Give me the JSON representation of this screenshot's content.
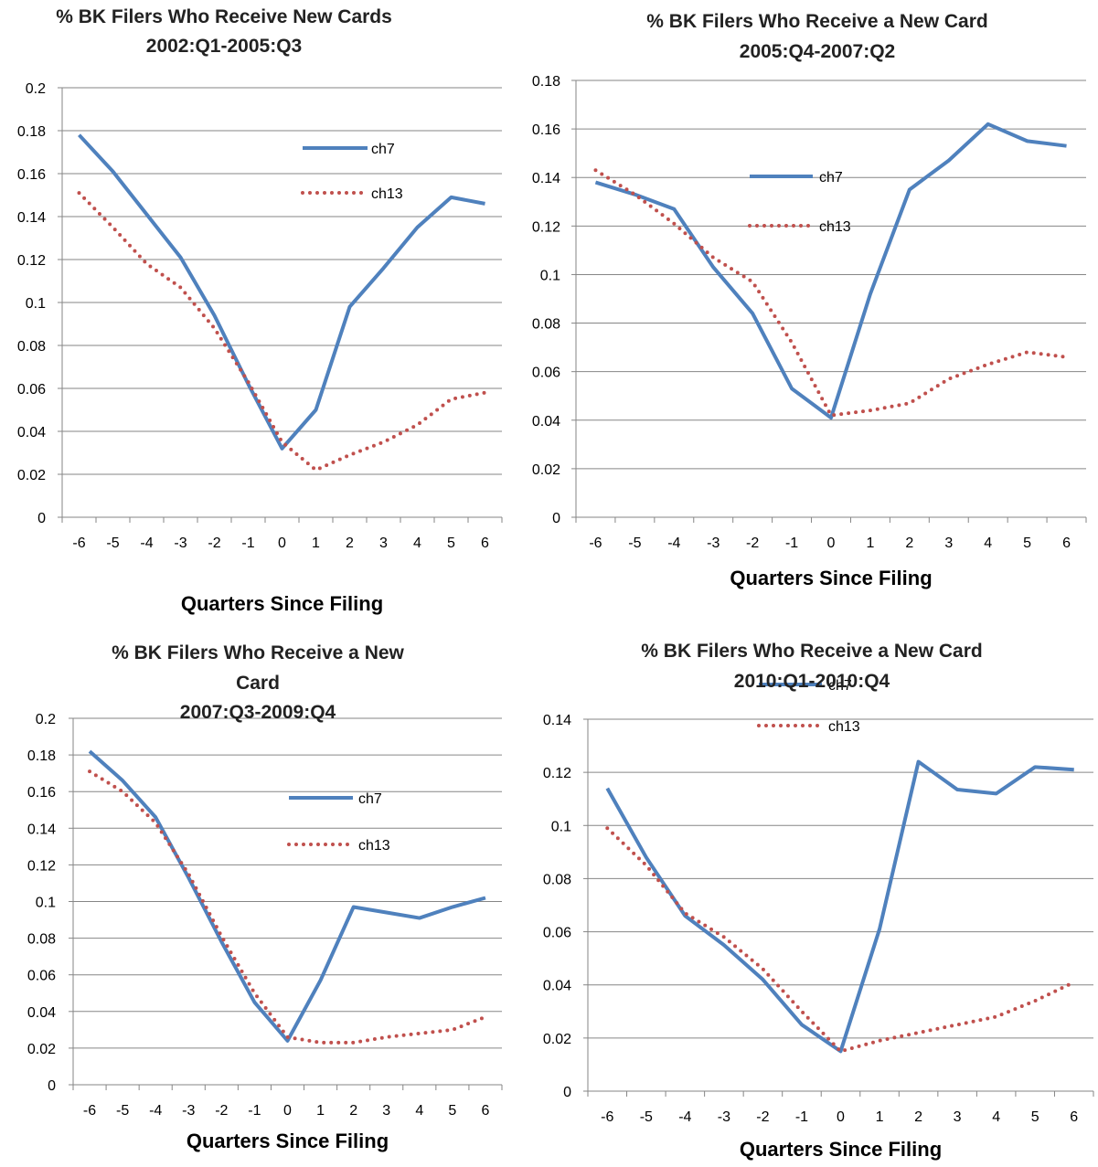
{
  "colors": {
    "ch7": "#4f81bd",
    "ch13": "#c0504d",
    "grid": "#868686",
    "axis": "#868686"
  },
  "chart_data": [
    {
      "type": "line",
      "title_lines": [
        "% BK Filers Who Receive New Cards",
        "2002:Q1-2005:Q3"
      ],
      "xlabel": "Quarters Since Filing",
      "ylabel": "",
      "categories": [
        "-6",
        "-5",
        "-4",
        "-3",
        "-2",
        "-1",
        "0",
        "1",
        "2",
        "3",
        "4",
        "5",
        "6"
      ],
      "ylim": [
        0,
        0.2
      ],
      "yticks": [
        "0",
        "0.02",
        "0.04",
        "0.06",
        "0.08",
        "0.1",
        "0.12",
        "0.14",
        "0.16",
        "0.18",
        "0.2"
      ],
      "legend_position": "upper-right",
      "series": [
        {
          "name": "ch7",
          "style": "solid",
          "values": [
            0.178,
            0.161,
            0.141,
            0.121,
            0.094,
            0.062,
            0.032,
            0.05,
            0.098,
            0.116,
            0.135,
            0.149,
            0.146
          ]
        },
        {
          "name": "ch13",
          "style": "dotted",
          "values": [
            0.151,
            0.135,
            0.118,
            0.107,
            0.088,
            0.063,
            0.035,
            0.022,
            0.029,
            0.035,
            0.043,
            0.055,
            0.058
          ]
        }
      ]
    },
    {
      "type": "line",
      "title_lines": [
        "% BK Filers Who Receive a New Card",
        "2005:Q4-2007:Q2"
      ],
      "xlabel": "Quarters Since Filing",
      "ylabel": "",
      "categories": [
        "-6",
        "-5",
        "-4",
        "-3",
        "-2",
        "-1",
        "0",
        "1",
        "2",
        "3",
        "4",
        "5",
        "6"
      ],
      "ylim": [
        0,
        0.18
      ],
      "yticks": [
        "0",
        "0.02",
        "0.04",
        "0.06",
        "0.08",
        "0.1",
        "0.12",
        "0.14",
        "0.16",
        "0.18"
      ],
      "legend_position": "center",
      "series": [
        {
          "name": "ch7",
          "style": "solid",
          "values": [
            0.138,
            0.133,
            0.127,
            0.103,
            0.084,
            0.053,
            0.041,
            0.092,
            0.135,
            0.147,
            0.162,
            0.155,
            0.153
          ]
        },
        {
          "name": "ch13",
          "style": "dotted",
          "values": [
            0.143,
            0.133,
            0.121,
            0.107,
            0.097,
            0.072,
            0.042,
            0.044,
            0.047,
            0.057,
            0.063,
            0.068,
            0.066
          ]
        }
      ]
    },
    {
      "type": "line",
      "title_lines": [
        "% BK Filers Who Receive a New",
        "Card",
        "2007:Q3-2009:Q4"
      ],
      "xlabel": "Quarters Since Filing",
      "ylabel": "",
      "categories": [
        "-6",
        "-5",
        "-4",
        "-3",
        "-2",
        "-1",
        "0",
        "1",
        "2",
        "3",
        "4",
        "5",
        "6"
      ],
      "ylim": [
        0,
        0.2
      ],
      "yticks": [
        "0",
        "0.02",
        "0.04",
        "0.06",
        "0.08",
        "0.1",
        "0.12",
        "0.14",
        "0.16",
        "0.18",
        "0.2"
      ],
      "legend_position": "center-right",
      "series": [
        {
          "name": "ch7",
          "style": "solid",
          "values": [
            0.182,
            0.166,
            0.146,
            0.113,
            0.078,
            0.045,
            0.024,
            0.057,
            0.097,
            0.094,
            0.091,
            0.097,
            0.102
          ]
        },
        {
          "name": "ch13",
          "style": "dotted",
          "values": [
            0.171,
            0.16,
            0.143,
            0.115,
            0.081,
            0.05,
            0.026,
            0.023,
            0.023,
            0.026,
            0.028,
            0.03,
            0.037
          ]
        }
      ]
    },
    {
      "type": "line",
      "title_lines": [
        "% BK Filers Who Receive a New Card",
        "2010:Q1-2010:Q4"
      ],
      "xlabel": "Quarters Since Filing",
      "ylabel": "",
      "categories": [
        "-6",
        "-5",
        "-4",
        "-3",
        "-2",
        "-1",
        "0",
        "1",
        "2",
        "3",
        "4",
        "5",
        "6"
      ],
      "ylim": [
        0,
        0.14
      ],
      "yticks": [
        "0",
        "0.02",
        "0.04",
        "0.06",
        "0.08",
        "0.1",
        "0.12",
        "0.14"
      ],
      "legend_position": "center",
      "series": [
        {
          "name": "ch7",
          "style": "solid",
          "values": [
            0.114,
            0.088,
            0.066,
            0.055,
            0.042,
            0.025,
            0.015,
            0.061,
            0.124,
            0.1135,
            0.112,
            0.122,
            0.121
          ]
        },
        {
          "name": "ch13",
          "style": "dotted",
          "values": [
            0.099,
            0.085,
            0.067,
            0.058,
            0.046,
            0.03,
            0.015,
            0.019,
            0.022,
            0.025,
            0.028,
            0.034,
            0.041
          ]
        }
      ]
    }
  ]
}
